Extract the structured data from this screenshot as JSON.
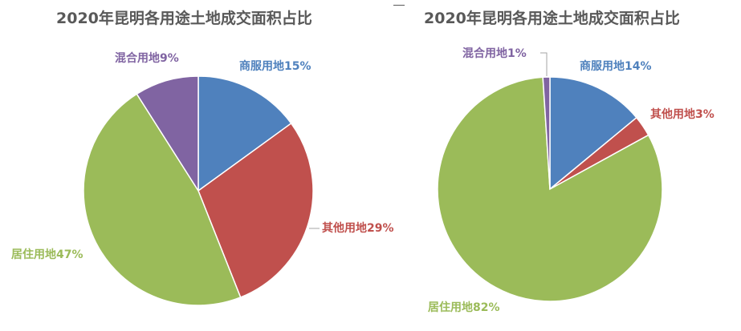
{
  "chart_data": [
    {
      "type": "pie",
      "title": "2020年昆明各用途土地成交面积占比",
      "slices": [
        {
          "label": "商服用地",
          "value": 15,
          "display": "商服用地15%",
          "color": "#4F81BD"
        },
        {
          "label": "其他用地",
          "value": 29,
          "display": "其他用地29%",
          "color": "#C0504D"
        },
        {
          "label": "居住用地",
          "value": 47,
          "display": "居住用地47%",
          "color": "#9BBB59"
        },
        {
          "label": "混合用地",
          "value": 9,
          "display": "混合用地9%",
          "color": "#8064A2"
        }
      ]
    },
    {
      "type": "pie",
      "title": "2020年昆明各用途土地成交面积占比",
      "slices": [
        {
          "label": "商服用地",
          "value": 14,
          "display": "商服用地14%",
          "color": "#4F81BD"
        },
        {
          "label": "其他用地",
          "value": 3,
          "display": "其他用地3%",
          "color": "#C0504D"
        },
        {
          "label": "居住用地",
          "value": 82,
          "display": "居住用地82%",
          "color": "#9BBB59"
        },
        {
          "label": "混合用地",
          "value": 1,
          "display": "混合用地1%",
          "color": "#8064A2"
        }
      ]
    }
  ]
}
